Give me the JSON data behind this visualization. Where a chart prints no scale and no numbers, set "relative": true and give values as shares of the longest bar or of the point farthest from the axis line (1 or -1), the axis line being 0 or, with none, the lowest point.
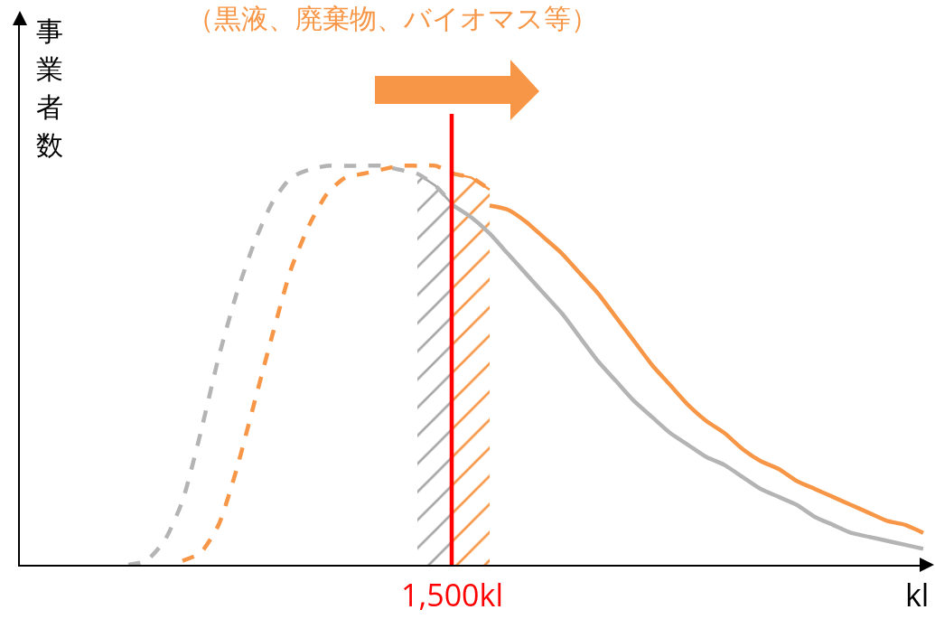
{
  "chart_data": {
    "type": "line",
    "relative": true,
    "title": "（黒液、廃棄物、バイオマス等）",
    "ylabel": "事業者数",
    "xlabel": "kl",
    "categories": [
      null,
      null,
      null,
      null,
      null,
      null,
      null,
      null,
      null,
      null,
      null,
      null,
      null,
      null,
      null,
      null,
      null,
      null,
      null,
      null,
      null,
      null,
      null,
      null,
      null,
      null,
      null,
      null,
      null,
      null,
      null,
      null,
      null,
      null,
      null,
      null,
      null,
      null,
      null,
      null,
      null,
      null,
      null,
      null,
      null,
      null,
      null,
      null,
      null,
      null,
      null
    ],
    "series": [
      {
        "color": "#b4b4b4",
        "line_style": "dashed",
        "values": [
          null,
          null,
          null,
          null,
          null,
          null,
          0,
          0.01,
          0.06,
          0.16,
          0.33,
          0.52,
          0.68,
          0.81,
          0.91,
          0.97,
          0.99,
          1.0,
          1,
          1,
          1.0,
          0.99,
          0.98,
          0.95,
          0.9,
          null,
          null,
          null,
          null,
          null,
          null,
          null,
          null,
          null,
          null,
          null,
          null,
          null,
          null,
          null,
          null,
          null,
          null,
          null,
          null,
          null,
          null,
          null,
          null,
          null,
          null
        ]
      },
      {
        "color": "#b4b4b4",
        "line_style": "solid",
        "values": [
          null,
          null,
          null,
          null,
          null,
          null,
          null,
          null,
          null,
          null,
          null,
          null,
          null,
          null,
          null,
          null,
          null,
          null,
          null,
          null,
          null,
          null,
          null,
          null,
          0.9,
          0.87,
          0.83,
          0.78,
          0.73,
          0.68,
          0.63,
          0.57,
          0.51,
          0.46,
          0.41,
          0.37,
          0.33,
          0.3,
          0.27,
          0.25,
          0.22,
          0.19,
          0.17,
          0.15,
          0.12,
          0.1,
          0.08,
          0.07,
          0.06,
          0.05,
          0.04
        ]
      },
      {
        "color": "#f79646",
        "line_style": "dashed",
        "values": [
          null,
          null,
          null,
          null,
          null,
          null,
          null,
          null,
          null,
          0.01,
          0.03,
          0.1,
          0.24,
          0.41,
          0.58,
          0.74,
          0.85,
          0.93,
          0.97,
          0.98,
          0.99,
          1.0,
          1,
          1.0,
          0.98,
          0.97,
          0.94,
          null,
          null,
          null,
          null,
          null,
          null,
          null,
          null,
          null,
          null,
          null,
          null,
          null,
          null,
          null,
          null,
          null,
          null,
          null,
          null,
          null,
          null,
          null,
          null
        ]
      },
      {
        "color": "#f79646",
        "line_style": "solid",
        "values": [
          null,
          null,
          null,
          null,
          null,
          null,
          null,
          null,
          null,
          null,
          null,
          null,
          null,
          null,
          null,
          null,
          null,
          null,
          null,
          null,
          null,
          null,
          null,
          null,
          null,
          null,
          0.9,
          0.89,
          0.86,
          0.82,
          0.78,
          0.73,
          0.68,
          0.62,
          0.56,
          0.5,
          0.45,
          0.4,
          0.36,
          0.33,
          0.29,
          0.26,
          0.24,
          0.21,
          0.19,
          0.17,
          0.15,
          0.13,
          0.11,
          0.1,
          0.08
        ]
      },
      {
        "type": "area",
        "color": "#a6a6a6",
        "values": [
          null,
          null,
          null,
          null,
          null,
          null,
          null,
          null,
          null,
          null,
          null,
          null,
          null,
          null,
          null,
          null,
          null,
          null,
          null,
          null,
          null,
          null,
          0.98,
          0.95,
          0.9,
          null,
          null,
          null,
          null,
          null,
          null,
          null,
          null,
          null,
          null,
          null,
          null,
          null,
          null,
          null,
          null,
          null,
          null,
          null,
          null,
          null,
          null,
          null,
          null,
          null,
          null
        ]
      },
      {
        "type": "area",
        "color": "#f79646",
        "values": [
          null,
          null,
          null,
          null,
          null,
          null,
          null,
          null,
          null,
          null,
          null,
          null,
          null,
          null,
          null,
          null,
          null,
          null,
          null,
          null,
          null,
          null,
          null,
          null,
          0.98,
          0.97,
          0.94,
          null,
          null,
          null,
          null,
          null,
          null,
          null,
          null,
          null,
          null,
          null,
          null,
          null,
          null,
          null,
          null,
          null,
          null,
          null,
          null,
          null,
          null,
          null,
          null
        ]
      }
    ],
    "annotations": [
      "1,500kl"
    ],
    "grid": false,
    "legend": false
  }
}
